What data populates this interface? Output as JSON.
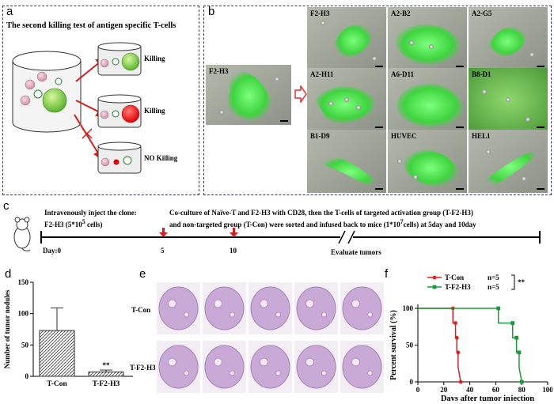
{
  "panel_a": {
    "letter": "a",
    "title": "The second killing test of antigen specific T-cells",
    "outcomes": [
      "Killing",
      "Killing",
      "NO Killing"
    ]
  },
  "panel_b": {
    "letter": "b",
    "single_label": "F2-H3",
    "grid_labels": [
      "F2-H3",
      "A2-B2",
      "A2-G5",
      "A2-H11",
      "A6-D11",
      "B8-D1",
      "B1-D9",
      "HUVEC",
      "HEL1"
    ]
  },
  "panel_c": {
    "letter": "c",
    "inject_text_1": "Intravenously inject the clone:",
    "inject_text_2": "F2-H3 (5*10",
    "inject_sup": "5",
    "inject_text_3": " cells)",
    "coculture_1": "Co-culture of Naïve-T and F2-H3 with CD28, then the T-cells of  targeted activation group (T-F2-H3)",
    "coculture_2": "and non-targeted group (T-Con) were sorted and infused back to mice (1*10",
    "coculture_sup": "7",
    "coculture_3": "cells) at 5day and 10day",
    "day0": "Day:0",
    "day5": "5",
    "day10": "10",
    "evaluate": "Evaluate tumors"
  },
  "panel_d": {
    "letter": "d",
    "significance": "**",
    "chart_data": {
      "type": "bar",
      "categories": [
        "T-Con",
        "T-F2-H3"
      ],
      "values": [
        73,
        7
      ],
      "errors": [
        36,
        3
      ],
      "ylabel": "Number of tumor nodules",
      "ylim": [
        0,
        150
      ],
      "yticks": [
        0,
        50,
        100,
        150
      ]
    }
  },
  "panel_e": {
    "letter": "e",
    "row_labels": [
      "T-Con",
      "T-F2-H3"
    ]
  },
  "panel_f": {
    "letter": "f",
    "significance": "**",
    "chart_data": {
      "type": "line",
      "xlabel": "Days after tumor injection",
      "ylabel": "Percent survival (%)",
      "xlim": [
        0,
        100
      ],
      "ylim": [
        0,
        100
      ],
      "xticks": [
        0,
        20,
        40,
        60,
        80,
        100
      ],
      "yticks": [
        0,
        50,
        100
      ],
      "series": [
        {
          "name": "T-Con",
          "n_label": "n=5",
          "color": "#e02020",
          "x": [
            0,
            27,
            27,
            29,
            29,
            30,
            30,
            31,
            31,
            33
          ],
          "y": [
            100,
            100,
            80,
            80,
            60,
            60,
            40,
            40,
            20,
            0
          ]
        },
        {
          "name": "T-F2-H3",
          "n_label": "n=5",
          "color": "#1a9a3a",
          "x": [
            0,
            62,
            62,
            73,
            73,
            76,
            76,
            78,
            78,
            80
          ],
          "y": [
            100,
            100,
            80,
            80,
            60,
            60,
            40,
            40,
            20,
            0
          ]
        }
      ]
    }
  }
}
